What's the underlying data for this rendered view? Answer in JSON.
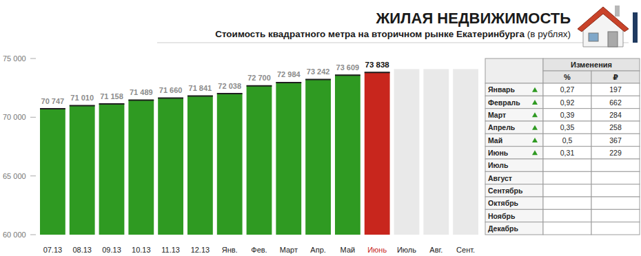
{
  "chart_data": {
    "type": "bar",
    "title": "ЖИЛАЯ НЕДВИЖИМОСТЬ",
    "subtitle": "Стоимость квадратного метра на вторичном рынке Екатеринбурга (в рублях)",
    "categories": [
      "07.13",
      "08.13",
      "09.13",
      "10.13",
      "11.13",
      "12.13",
      "Янв.",
      "Фев.",
      "Март",
      "Апр.",
      "Май",
      "Июнь",
      "Июль",
      "Авг.",
      "Сент."
    ],
    "values": [
      70747,
      71010,
      71158,
      71489,
      71660,
      71841,
      72038,
      72700,
      72984,
      73242,
      73609,
      73838,
      null,
      null,
      null
    ],
    "value_labels": [
      "70 747",
      "71 010",
      "71 158",
      "71 489",
      "71 660",
      "71 841",
      "72 038",
      "72 700",
      "72 984",
      "73 242",
      "73 609",
      "73 838",
      null,
      null,
      null
    ],
    "colors": [
      "#2f9a22",
      "#2f9a22",
      "#2f9a22",
      "#2f9a22",
      "#2f9a22",
      "#2f9a22",
      "#2f9a22",
      "#2f9a22",
      "#2f9a22",
      "#2f9a22",
      "#2f9a22",
      "#c8261d",
      "#e9e9e9",
      "#e9e9e9",
      "#e9e9e9"
    ],
    "ylim": [
      60000,
      75000
    ],
    "yticks": [
      {
        "value": 60000,
        "label": "60 000"
      },
      {
        "value": 65000,
        "label": "65 000"
      },
      {
        "value": 70000,
        "label": "70 000"
      },
      {
        "value": 75000,
        "label": "75 000"
      }
    ],
    "grid": false,
    "data_labels": true
  },
  "table": {
    "header": "Изменения",
    "columns": [
      "%",
      "₽"
    ],
    "rows": [
      {
        "label": "Январь",
        "values": [
          "0,27",
          "197"
        ]
      },
      {
        "label": "Февраль",
        "values": [
          "0,92",
          "662"
        ]
      },
      {
        "label": "Март",
        "values": [
          "0,39",
          "284"
        ]
      },
      {
        "label": "Апрель",
        "values": [
          "0,35",
          "258"
        ]
      },
      {
        "label": "Май",
        "values": [
          "0,5",
          "367"
        ]
      },
      {
        "label": "Июнь",
        "values": [
          "0,31",
          "229"
        ]
      },
      {
        "label": "Июль",
        "values": [
          null,
          null
        ]
      },
      {
        "label": "Август",
        "values": [
          null,
          null
        ]
      },
      {
        "label": "Сентябрь",
        "values": [
          null,
          null
        ]
      },
      {
        "label": "Октябрь",
        "values": [
          null,
          null
        ]
      },
      {
        "label": "Ноябрь",
        "values": [
          null,
          null
        ]
      },
      {
        "label": "Декабрь",
        "values": [
          null,
          null
        ]
      }
    ]
  }
}
